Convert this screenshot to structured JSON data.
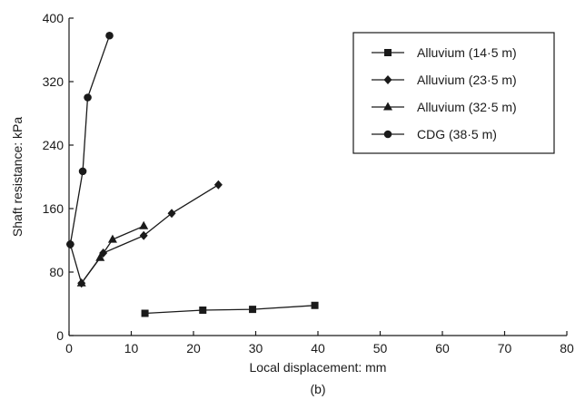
{
  "caption": "(b)",
  "chart_data": {
    "type": "line",
    "xlabel": "Local displacement: mm",
    "ylabel": "Shaft resistance: kPa",
    "xlim": [
      0,
      80
    ],
    "ylim": [
      0,
      400
    ],
    "xticks": [
      0,
      10,
      20,
      30,
      40,
      50,
      60,
      70,
      80
    ],
    "yticks": [
      0,
      80,
      160,
      240,
      320,
      400
    ],
    "grid": false,
    "legend_position": "top-right",
    "series": [
      {
        "name": "Alluvium (14·5 m)",
        "marker": "square",
        "points": [
          [
            12.2,
            28
          ],
          [
            21.5,
            32
          ],
          [
            29.5,
            33
          ],
          [
            39.5,
            38
          ]
        ]
      },
      {
        "name": "Alluvium (23·5 m)",
        "marker": "diamond",
        "points": [
          [
            0.2,
            115
          ],
          [
            2.0,
            66
          ],
          [
            5.5,
            104
          ],
          [
            12.0,
            126
          ],
          [
            16.5,
            154
          ],
          [
            24.0,
            190
          ]
        ]
      },
      {
        "name": "Alluvium (32·5 m)",
        "marker": "triangle",
        "points": [
          [
            2.0,
            66
          ],
          [
            5.0,
            98
          ],
          [
            7.0,
            121
          ],
          [
            12.0,
            138
          ]
        ]
      },
      {
        "name": "CDG (38·5 m)",
        "marker": "circle",
        "points": [
          [
            0.2,
            115
          ],
          [
            2.2,
            207
          ],
          [
            3.0,
            300
          ],
          [
            6.5,
            378
          ]
        ]
      }
    ]
  }
}
